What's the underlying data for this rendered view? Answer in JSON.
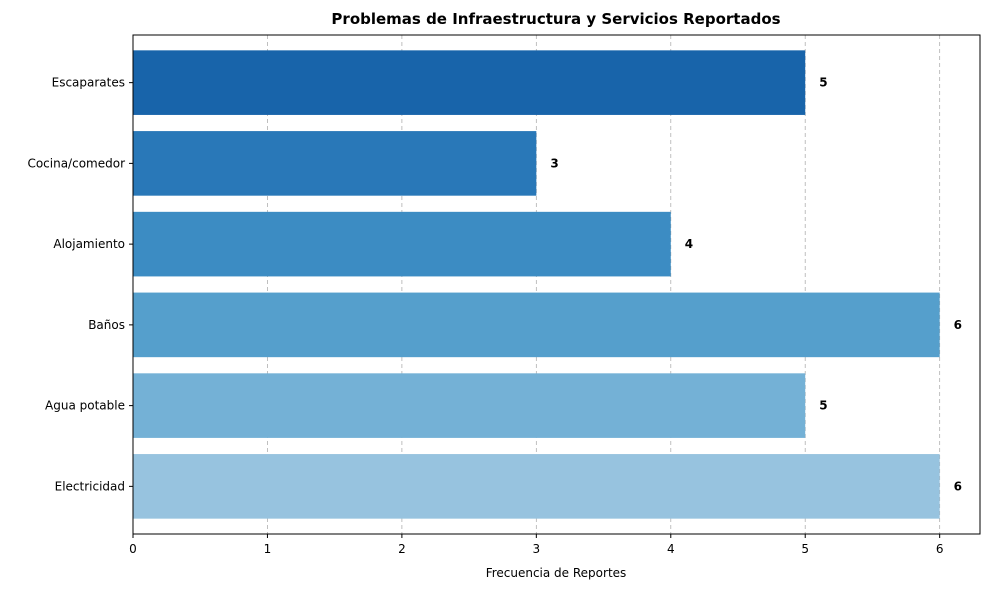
{
  "chart_data": {
    "type": "bar",
    "orientation": "horizontal",
    "title": "Problemas de Infraestructura y Servicios Reportados",
    "xlabel": "Frecuencia de Reportes",
    "ylabel": "",
    "categories": [
      "Electricidad",
      "Agua potable",
      "Baños",
      "Alojamiento",
      "Cocina/comedor",
      "Escaparates"
    ],
    "values": [
      6,
      5,
      6,
      4,
      3,
      5
    ],
    "data_labels": [
      "6",
      "5",
      "6",
      "4",
      "3",
      "5"
    ],
    "x_ticks": [
      "0",
      "1",
      "2",
      "3",
      "4",
      "5",
      "6"
    ],
    "xlim": [
      0,
      6.3
    ],
    "grid": "vertical dashed",
    "colors": [
      "#97c3df",
      "#74b1d6",
      "#559fcc",
      "#3c8cc3",
      "#2978b8",
      "#1864aa"
    ]
  }
}
